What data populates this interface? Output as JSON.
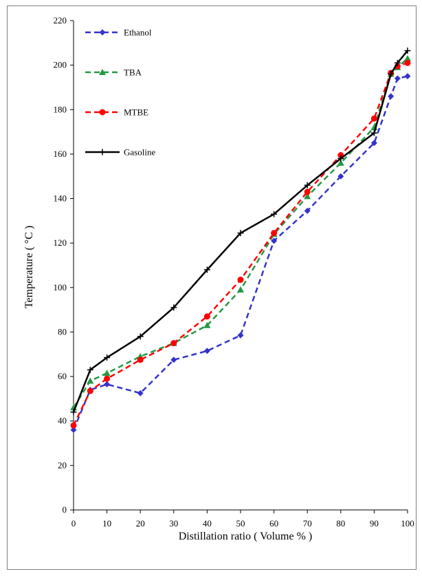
{
  "chart_data": {
    "type": "line",
    "title": "",
    "xlabel": "Distillation ratio ( Volume % )",
    "ylabel": "Temperature ( °C )",
    "xlim": [
      0,
      100
    ],
    "ylim": [
      0,
      220
    ],
    "x_ticks": [
      0,
      10,
      20,
      30,
      40,
      50,
      60,
      70,
      80,
      90,
      100
    ],
    "y_ticks": [
      0,
      20,
      40,
      60,
      80,
      100,
      120,
      140,
      160,
      180,
      200,
      220
    ],
    "x_tick_labels": [
      "0",
      "10",
      "20",
      "30",
      "40",
      "50",
      "60",
      "70",
      "80",
      "90",
      "100"
    ],
    "y_tick_labels": [
      "0",
      "20",
      "40",
      "60",
      "80",
      "100",
      "120",
      "140",
      "160",
      "180",
      "200",
      "220"
    ],
    "grid": false,
    "legend_position": "top-left",
    "series": [
      {
        "name": "Ethanol",
        "color": "#3333cc",
        "style": "dashed",
        "marker": "diamond",
        "x": [
          0,
          5,
          10,
          20,
          30,
          40,
          50,
          60,
          70,
          80,
          90,
          95,
          97,
          100
        ],
        "y": [
          36,
          54,
          56.5,
          52.5,
          67.5,
          71.5,
          78.5,
          121,
          134.5,
          150,
          165,
          186,
          194,
          195
        ]
      },
      {
        "name": "TBA",
        "color": "#229944",
        "style": "dashed",
        "marker": "triangle",
        "x": [
          0,
          5,
          10,
          20,
          30,
          40,
          50,
          60,
          70,
          80,
          90,
          95,
          97,
          100
        ],
        "y": [
          46,
          58,
          61.5,
          69,
          75,
          83,
          99,
          124,
          141,
          156,
          172,
          196,
          199,
          203
        ]
      },
      {
        "name": "MTBE",
        "color": "#ff0000",
        "style": "dashed",
        "marker": "circle",
        "x": [
          0,
          5,
          10,
          20,
          30,
          40,
          50,
          60,
          70,
          80,
          90,
          95,
          97,
          100
        ],
        "y": [
          38,
          53.5,
          59,
          67.5,
          75,
          87,
          103.5,
          124.5,
          143,
          159.5,
          176,
          196.5,
          199.5,
          201
        ]
      },
      {
        "name": "Gasoline",
        "color": "#000000",
        "style": "solid",
        "marker": "plus",
        "x": [
          0,
          5,
          10,
          20,
          30,
          40,
          50,
          60,
          70,
          80,
          90,
          95,
          97,
          100
        ],
        "y": [
          44,
          63,
          68.5,
          78,
          91,
          108,
          124.5,
          133,
          146,
          158,
          169.5,
          196,
          201,
          206.5
        ]
      }
    ]
  }
}
